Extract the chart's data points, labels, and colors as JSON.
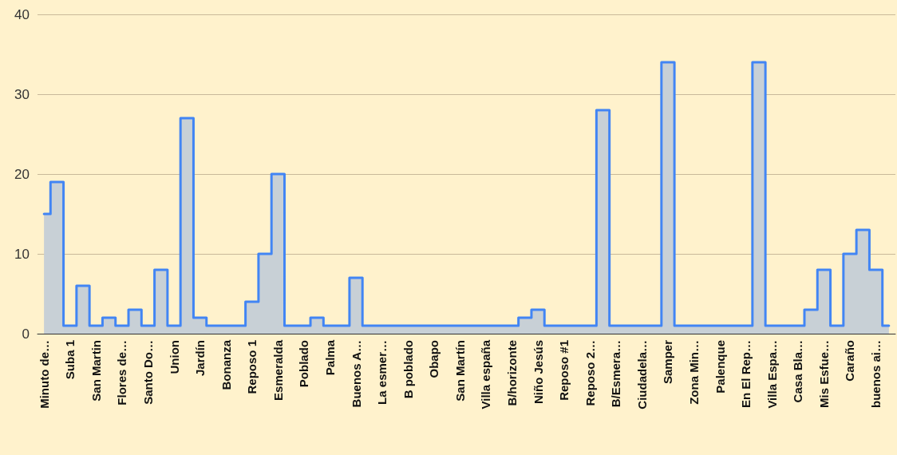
{
  "chart_data": {
    "type": "area",
    "categories": [
      "Minuto de…",
      null,
      "Suba 1",
      null,
      "San Martin",
      null,
      "Flores de…",
      null,
      "Santo Do…",
      null,
      "Union",
      null,
      "Jardín",
      null,
      "Bonanza",
      null,
      "Reposo 1",
      null,
      "Esmeralda",
      null,
      "Poblado",
      null,
      "Palma",
      null,
      "Buenos A…",
      null,
      "La esmer…",
      null,
      "B poblado",
      null,
      "Obapo",
      null,
      "San Martín",
      null,
      "Villa españa",
      null,
      "B/horizonte",
      null,
      "Niño Jesús",
      null,
      "Reposo #1",
      null,
      "Reposo 2…",
      null,
      "B/Esmera…",
      null,
      "Ciudadela…",
      null,
      "Samper",
      null,
      "Zona Min…",
      null,
      "Palenque",
      null,
      "En El Rep…",
      null,
      "Villa Espa…",
      null,
      "Casa Bla…",
      null,
      "Mis Esfue…",
      null,
      "Caraño",
      null,
      "buenos ai…",
      null
    ],
    "series": [
      {
        "color": "#4285f4",
        "values": [
          15,
          19,
          1,
          6,
          1,
          2,
          1,
          3,
          1,
          8,
          1,
          27,
          2,
          1,
          1,
          1,
          4,
          10,
          20,
          1,
          1,
          2,
          1,
          1,
          7,
          1,
          1,
          1,
          1,
          1,
          1,
          1,
          1,
          1,
          1,
          1,
          1,
          2,
          3,
          1,
          1,
          1,
          1,
          28,
          1,
          1,
          1,
          1,
          34,
          1,
          1,
          1,
          1,
          1,
          1,
          34,
          1,
          1,
          1,
          3,
          8,
          1,
          10,
          13,
          8,
          1
        ]
      }
    ],
    "ylim": [
      0,
      40
    ],
    "yticks": [
      0,
      10,
      20,
      30,
      40
    ],
    "grid": "y",
    "marker": "none"
  }
}
